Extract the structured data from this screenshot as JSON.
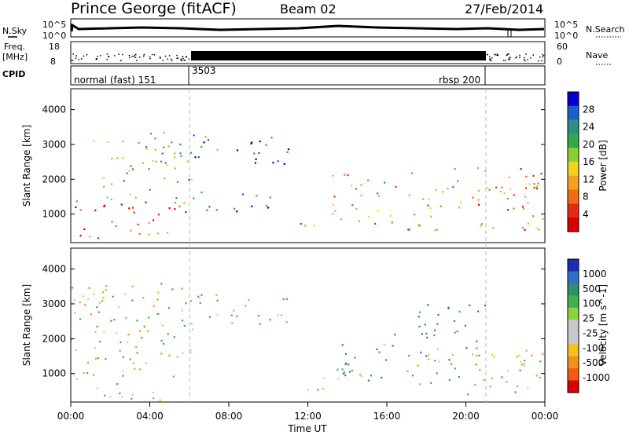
{
  "header": {
    "station": "Prince George (fitACF)",
    "beam": "Beam 02",
    "date": "27/Feb/2014"
  },
  "top_panels": {
    "nsky_label": "N.Sky",
    "nsky_ticks": [
      "10^5",
      "10^0"
    ],
    "nsearch_label": "N.Search",
    "nsearch_ticks": [
      "10^5",
      "10^0"
    ],
    "freq_label_1": "Freq.",
    "freq_label_2": "[MHz]",
    "freq_ticks": [
      "18",
      "8"
    ],
    "nave_label": "Nave",
    "nave_ticks": [
      "60",
      "0"
    ],
    "cpid_label": "CPID",
    "cpid_segments": [
      {
        "label": "normal (fast) 151",
        "start_h": 0,
        "end_h": 6
      },
      {
        "label": "3503",
        "start_h": 6,
        "end_h": 21
      },
      {
        "label": "rbsp 200",
        "start_h": 21,
        "end_h": 24
      }
    ]
  },
  "time_axis": {
    "label": "Time UT",
    "ticks": [
      "00:00",
      "04:00",
      "08:00",
      "12:00",
      "16:00",
      "20:00",
      "00:00"
    ]
  },
  "chart_data": [
    {
      "type": "heatmap",
      "name": "power",
      "ylabel": "Slant Range [km]",
      "yticks": [
        "4000",
        "3000",
        "2000",
        "1000"
      ],
      "ylim": [
        180,
        4600
      ],
      "xlim": [
        0,
        24
      ],
      "colorbar_label": "Power [dB]",
      "colorbar_ticks": [
        "28",
        "24",
        "20",
        "16",
        "12",
        "8",
        "4"
      ],
      "colorbar_colors": [
        "#0000d8",
        "#1a5fc8",
        "#2f8f86",
        "#33a84a",
        "#8ccf32",
        "#f2d21a",
        "#f7a020",
        "#f26a14",
        "#e42a10",
        "#d80000"
      ],
      "regions": [
        {
          "t": [
            0.2,
            6.0
          ],
          "r": [
            300,
            1400
          ],
          "level": 0.9
        },
        {
          "t": [
            1.0,
            6.2
          ],
          "r": [
            1400,
            3400
          ],
          "level": 0.45
        },
        {
          "t": [
            6.0,
            11.0
          ],
          "r": [
            2400,
            3300
          ],
          "level": 0.2
        },
        {
          "t": [
            6.5,
            10.5
          ],
          "r": [
            1100,
            1700
          ],
          "level": 0.2
        },
        {
          "t": [
            11.0,
            12.5
          ],
          "r": [
            550,
            900
          ],
          "level": 0.6
        },
        {
          "t": [
            13.2,
            16.5
          ],
          "r": [
            700,
            2200
          ],
          "level": 0.55
        },
        {
          "t": [
            17.0,
            24.0
          ],
          "r": [
            500,
            2400
          ],
          "level": 0.7
        }
      ]
    },
    {
      "type": "heatmap",
      "name": "velocity",
      "ylabel": "Slant Range [km]",
      "yticks": [
        "4000",
        "3000",
        "2000",
        "1000"
      ],
      "ylim": [
        180,
        4600
      ],
      "xlim": [
        0,
        24
      ],
      "colorbar_label": "Velocity [m s^-1]",
      "colorbar_ticks": [
        "1000",
        "500",
        "100",
        "25",
        "-25",
        "-100",
        "-500",
        "-1000"
      ],
      "colorbar_colors": [
        "#1a2fb0",
        "#2f6fc8",
        "#2f8f6a",
        "#3fb04a",
        "#8fd03f",
        "#c8c8c8",
        "#c8c8c8",
        "#f2c21a",
        "#f7901a",
        "#f25a14",
        "#d80000"
      ],
      "regions": [
        {
          "t": [
            0.0,
            6.2
          ],
          "r": [
            250,
            3600
          ],
          "value": 0
        },
        {
          "t": [
            6.0,
            11.0
          ],
          "r": [
            2400,
            3300
          ],
          "value": 0
        },
        {
          "t": [
            13.2,
            16.5
          ],
          "r": [
            700,
            2200
          ],
          "value": 300
        },
        {
          "t": [
            11.0,
            13.0
          ],
          "r": [
            500,
            900
          ],
          "value": 150
        },
        {
          "t": [
            17.0,
            24.0
          ],
          "r": [
            400,
            1800
          ],
          "value": 0
        },
        {
          "t": [
            17.5,
            21.0
          ],
          "r": [
            1400,
            3000
          ],
          "value": 400
        }
      ]
    }
  ]
}
